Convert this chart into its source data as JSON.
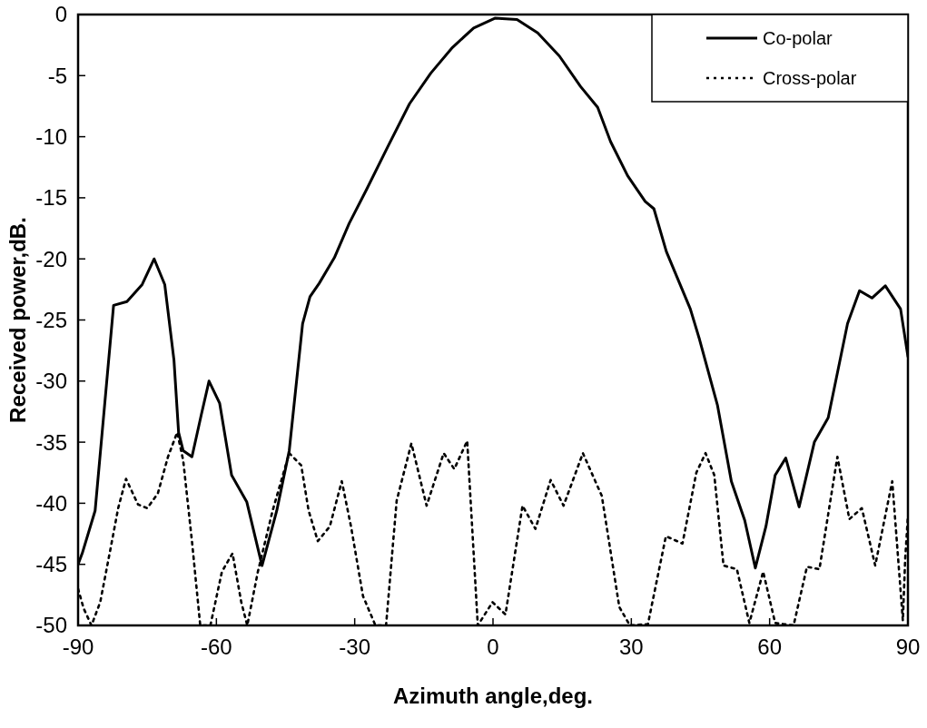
{
  "chart_data": {
    "type": "line",
    "xlabel": "Azimuth angle,deg.",
    "ylabel": "Received power,dB.",
    "xlim": [
      -90,
      90
    ],
    "xticks": [
      -90,
      -60,
      -30,
      0,
      30,
      60,
      90
    ],
    "ylim": [
      -50,
      0
    ],
    "yticks": [
      -50,
      -45,
      -40,
      -35,
      -30,
      -25,
      -20,
      -15,
      -10,
      -5,
      0
    ],
    "grid": false,
    "legend": "top right",
    "series": [
      {
        "name": "Co-polar",
        "color": "#000000",
        "line_style": "solid",
        "x": [
          -90,
          -89.1,
          -86.3,
          -82.3,
          -79.4,
          -76.1,
          -73.5,
          -71.2,
          -69.2,
          -68.2,
          -67.2,
          -65.3,
          -63.3,
          -61.6,
          -59.3,
          -56.7,
          -53.4,
          -50.1,
          -46.9,
          -44.2,
          -41.3,
          -39.7,
          -37.7,
          -34.4,
          -31.2,
          -27.4,
          -22.8,
          -18.1,
          -13.5,
          -8.8,
          -4.2,
          0.4,
          5.2,
          9.7,
          14.4,
          19,
          22.7,
          25.5,
          29.2,
          33,
          34.9,
          37.6,
          42.8,
          44.8,
          48.7,
          51.7,
          54.6,
          56.9,
          59.2,
          61.2,
          63.5,
          66.4,
          69.7,
          72.7,
          76.9,
          79.5,
          82.2,
          85.1,
          88.4,
          90
        ],
        "values": [
          -45,
          -44.1,
          -40.6,
          -23.8,
          -23.5,
          -22.1,
          -20,
          -22.1,
          -28.3,
          -34.2,
          -35.7,
          -36.2,
          -32.8,
          -30,
          -31.8,
          -37.7,
          -39.9,
          -45.1,
          -40.6,
          -35.7,
          -25.3,
          -23.1,
          -22,
          -19.9,
          -17.1,
          -14.3,
          -10.8,
          -7.3,
          -4.8,
          -2.7,
          -1.1,
          -0.3,
          -0.4,
          -1.5,
          -3.4,
          -5.9,
          -7.6,
          -10.4,
          -13.2,
          -15.3,
          -15.9,
          -19.4,
          -24.1,
          -26.6,
          -32,
          -38.2,
          -41.4,
          -45.3,
          -41.9,
          -37.7,
          -36.3,
          -40.3,
          -35,
          -33,
          -25.3,
          -22.6,
          -23.2,
          -22.2,
          -24.1,
          -28
        ]
      },
      {
        "name": "Cross-polar",
        "color": "#000000",
        "line_style": "dotted",
        "x": [
          -90,
          -88.8,
          -87.1,
          -85.2,
          -82.9,
          -81.3,
          -79.6,
          -77,
          -75,
          -72.7,
          -70.5,
          -68.5,
          -67.2,
          -65.3,
          -63.5,
          -61.3,
          -58.8,
          -56.5,
          -54.6,
          -53.3,
          -51,
          -47.8,
          -44.2,
          -41.6,
          -40,
          -38,
          -35.4,
          -32.8,
          -30.8,
          -28.2,
          -25.5,
          -23.2,
          -20.9,
          -17.7,
          -14.4,
          -10.7,
          -8.4,
          -5.6,
          -3.3,
          -0.1,
          2.7,
          6.4,
          9.2,
          12.5,
          15.3,
          19.5,
          23.6,
          27.4,
          29.7,
          33.6,
          37.5,
          41.1,
          44.1,
          46.1,
          48,
          50,
          52.9,
          55.6,
          58.6,
          61.2,
          65.2,
          68.1,
          70.8,
          74.7,
          77.3,
          80,
          82.9,
          86.6,
          88.9,
          89.4,
          90
        ],
        "values": [
          -47,
          -48.6,
          -50,
          -48.1,
          -43.6,
          -40.4,
          -38,
          -40.1,
          -40.4,
          -39.2,
          -36.2,
          -34.2,
          -36.5,
          -43.1,
          -50,
          -50,
          -45.6,
          -44.1,
          -48.1,
          -50,
          -45.6,
          -40.6,
          -35.9,
          -36.9,
          -40.6,
          -43.1,
          -41.9,
          -38.2,
          -41.9,
          -47.6,
          -50,
          -50,
          -39.8,
          -35.1,
          -40.2,
          -35.9,
          -37.2,
          -34.9,
          -50,
          -48.1,
          -49.1,
          -40.2,
          -42.1,
          -38.1,
          -40.2,
          -35.9,
          -39.4,
          -48.5,
          -50,
          -49.9,
          -42.7,
          -43.3,
          -37.5,
          -35.9,
          -37.7,
          -45.1,
          -45.4,
          -49.8,
          -45.6,
          -49.8,
          -50,
          -45.2,
          -45.4,
          -36.2,
          -41.3,
          -40.4,
          -45.1,
          -38.2,
          -49.6,
          -44.6,
          -41
        ]
      }
    ]
  }
}
